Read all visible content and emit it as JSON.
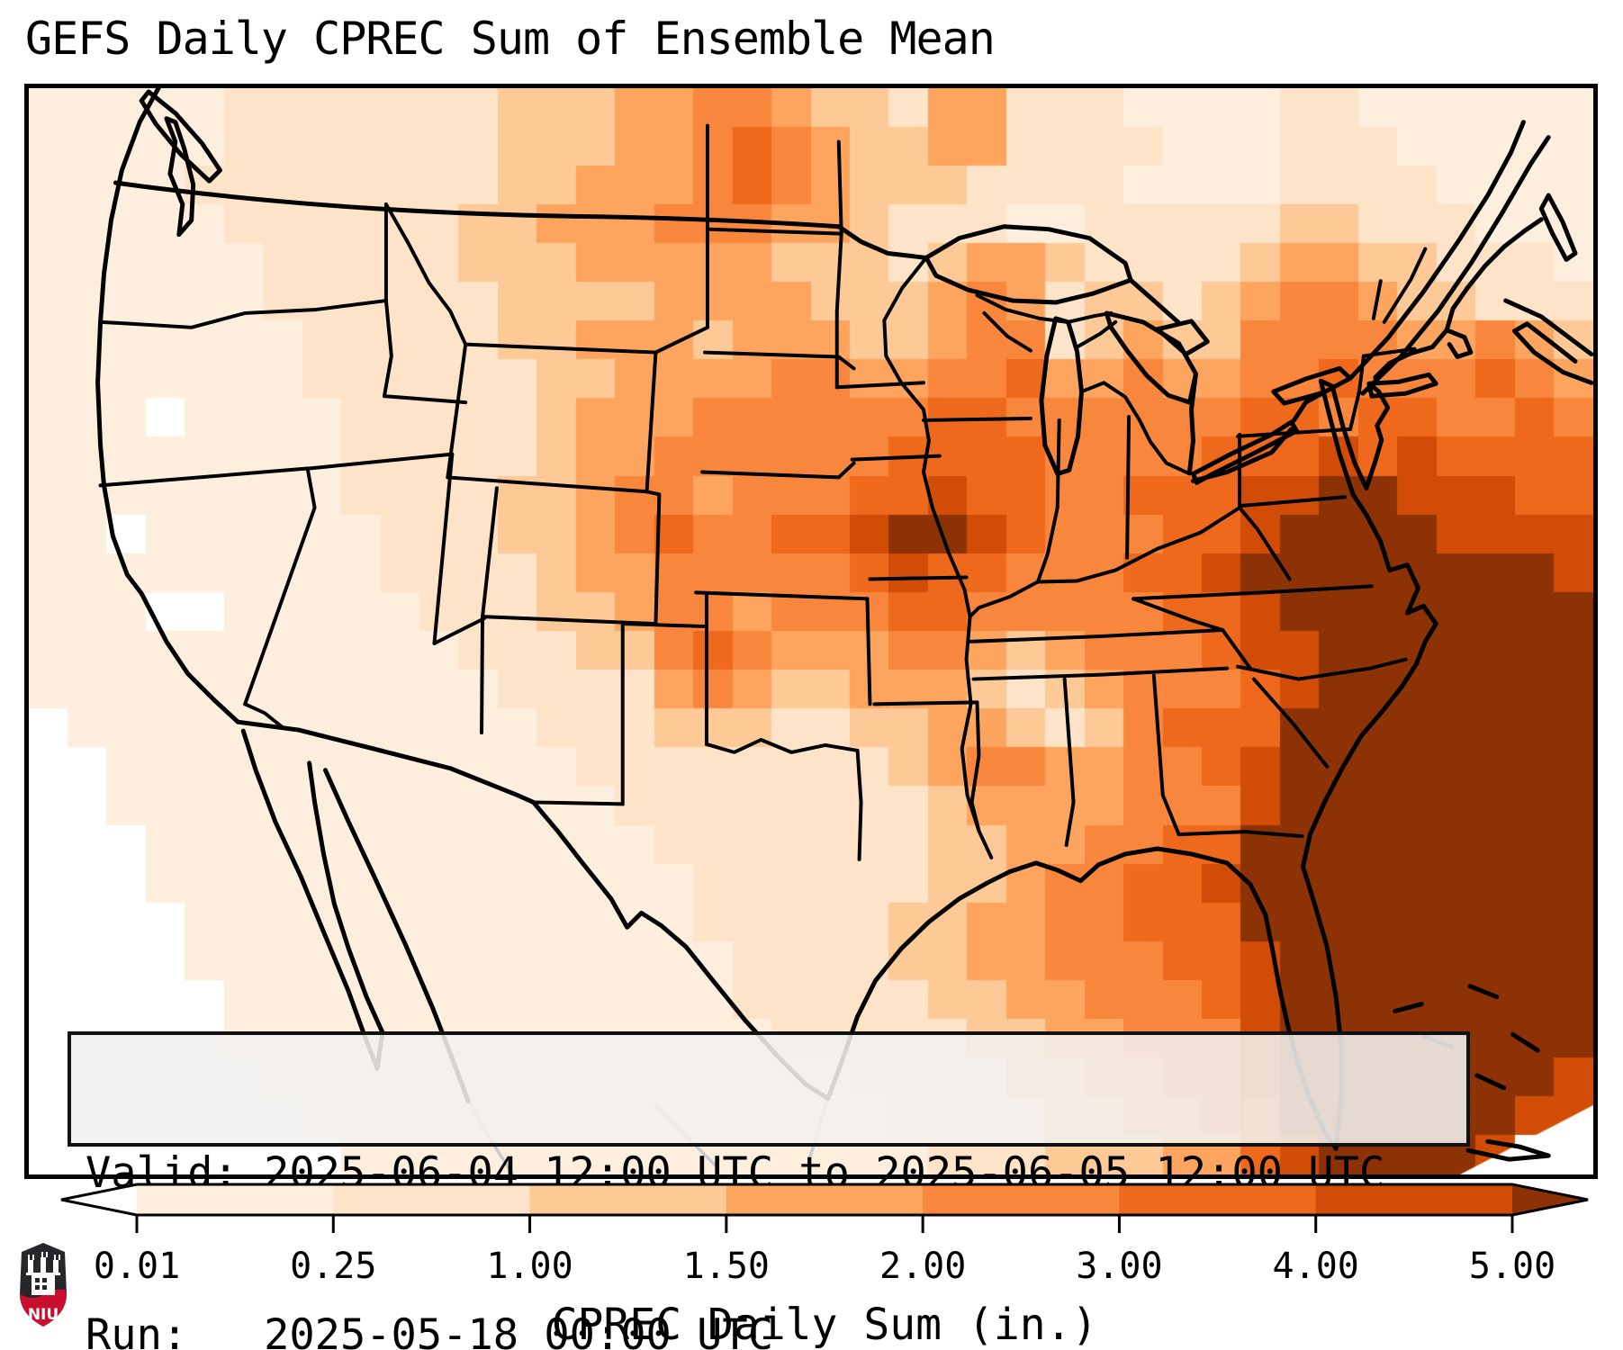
{
  "title": "GEFS Daily CPREC Sum of Ensemble Mean",
  "info_box": {
    "valid_line": "Valid: 2025-06-04 12:00 UTC to 2025-06-05 12:00 UTC",
    "run_line": "Run:   2025-05-18 00:00 UTC"
  },
  "colorbar": {
    "label": "CPREC Daily Sum (in.)",
    "tick_labels": [
      "0.01",
      "0.25",
      "1.00",
      "1.50",
      "2.00",
      "3.00",
      "4.00",
      "5.00"
    ],
    "boundaries_in": [
      0.01,
      0.25,
      1.0,
      1.5,
      2.0,
      3.0,
      4.0,
      5.0
    ],
    "segment_colors": [
      "#feeedd",
      "#fde3c8",
      "#fdc997",
      "#fda55f",
      "#f8873d",
      "#ee691b",
      "#d14d07"
    ],
    "under_color": "#ffffff",
    "over_color": "#8c3204",
    "outline_color": "#000000",
    "extend": "both"
  },
  "logo": {
    "text": "NIU",
    "shield_dark": "#26262b",
    "shield_red": "#c8102e"
  },
  "chart_data": {
    "type": "heatmap",
    "title": "GEFS Daily CPREC Sum of Ensemble Mean",
    "variable": "CPREC Daily Sum (in.)",
    "valid": "2025-06-04 12:00 UTC to 2025-06-05 12:00 UTC",
    "run": "2025-05-18 00:00 UTC",
    "region": "Contiguous United States (Lambert-conformal style view, gridded ~1-degree cells)",
    "level_edges_in": [
      0.01,
      0.25,
      1.0,
      1.5,
      2.0,
      3.0,
      4.0,
      5.0
    ],
    "level_colors": [
      "#ffffff",
      "#feeedd",
      "#fde3c8",
      "#fdc997",
      "#fda55f",
      "#f8873d",
      "#ee691b",
      "#d14d07",
      "#8c3204"
    ],
    "legend": "each grid character 0-8 = color index; 0 => <0.01 in, 1 => 0.01-0.25, 2 => 0.25-1.00, 3 => 1.00-1.50, 4 => 1.50-2.00, 5 => 2.00-3.00, 6 => 3.00-4.00, 7 => 4.00-5.00, 8 => >5.00",
    "grid_cols": 40,
    "grid_rows": 28,
    "grid_levels": [
      "1111122222223334455433244222111122111111",
      "1111122222223334456543344222211122211111",
      "1111222222223344456543332222111122221111",
      "1111122222233444555443222112222233222111",
      "1111112222233344444333234432222344332221",
      "1111112222223333444433345423323455433222",
      "1111111222223344434443345523433555544543",
      "1111111222222334444554455644544556555654",
      "1110111122222344455555566555555665665565",
      "1111111122222344555555666655556667676666",
      "1111111122223345545556676655666778877766",
      "1101111112223345655667887655566788887777",
      "1111111112222344555556766555667888888887",
      "1110011111222334554555665555566788888888",
      "1111111111122233565444554345556778888888",
      "1111111111112222454334443234555678888888",
      "0111111111111222333223344323566688888888",
      "0011111111111122222222345544556788888888",
      "0011111111111112222222234444555788888888",
      "0001111111111111222222233445566888888888",
      "0001111111111111122222233455667888888888",
      "0000111111111111122222334455666888888888",
      "0000111111111111112222334455566788888888",
      "0000011111111111112222233445556788888888",
      "0000011111111111111222223344555788888888",
      "0000001111111111111112222334455788888887",
      "0000000111111111111111222233445688888877",
      "0000000011111111111111122233344678888700"
    ],
    "notable_features": [
      "Heaviest daily totals (>5 in.) offshore of the Southeast US / western Atlantic and over eastern North Carolina",
      "Local >5 in. maximum over northwest Missouri / southwest Iowa",
      "2-4 in. band across the central Plains, Midwest and Ohio Valley into the Mid-Atlantic",
      "2-3 in. blob over central North Dakota",
      "Mostly <0.25 in. across the interior West, Texas and northern Mexico"
    ]
  }
}
